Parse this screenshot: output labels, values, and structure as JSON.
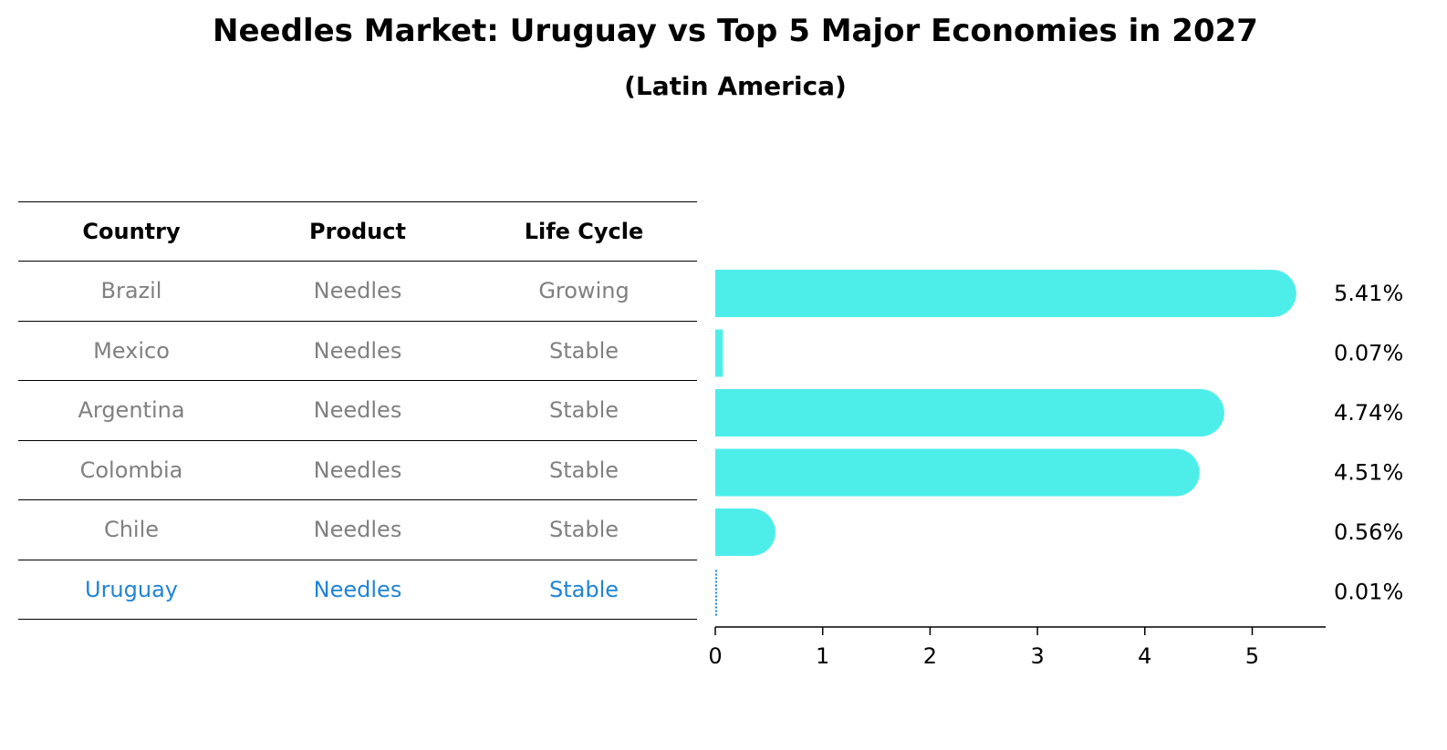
{
  "title": "Needles Market: Uruguay vs Top 5 Major Economies in 2027",
  "subtitle": "(Latin America)",
  "table": {
    "headers": [
      "Country",
      "Product",
      "Life Cycle"
    ],
    "rows": [
      [
        "Brazil",
        "Needles",
        "Growing"
      ],
      [
        "Mexico",
        "Needles",
        "Stable"
      ],
      [
        "Argentina",
        "Needles",
        "Stable"
      ],
      [
        "Colombia",
        "Needles",
        "Stable"
      ],
      [
        "Chile",
        "Needles",
        "Stable"
      ],
      [
        "Uruguay",
        "Needles",
        "Stable"
      ]
    ],
    "highlight_row": 5
  },
  "colors": {
    "bar": "#4deeea",
    "highlight": "#1f84d6",
    "muted_text": "#808080"
  },
  "chart_data": {
    "type": "bar",
    "orientation": "horizontal",
    "categories": [
      "Brazil",
      "Mexico",
      "Argentina",
      "Colombia",
      "Chile",
      "Uruguay"
    ],
    "values": [
      5.41,
      0.07,
      4.74,
      4.51,
      0.56,
      0.01
    ],
    "value_labels": [
      "5.41%",
      "0.07%",
      "4.74%",
      "4.51%",
      "0.56%",
      "0.01%"
    ],
    "xticks": [
      "0",
      "1",
      "2",
      "3",
      "4",
      "5"
    ],
    "xlim": [
      0,
      5.7
    ],
    "xlabel": "",
    "ylabel": "",
    "grid": false,
    "highlight_index": 5
  }
}
